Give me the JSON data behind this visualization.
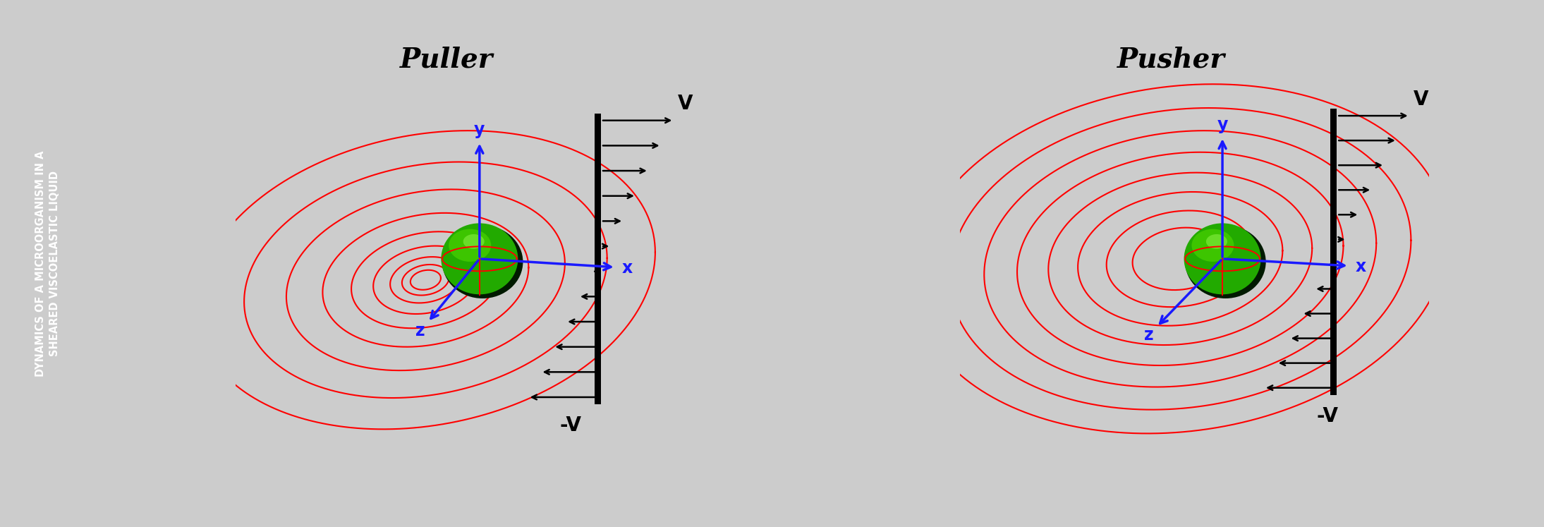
{
  "title": "DYNAMICS OF A MICROORGANISM IN A\nSHEARED VISCOELASTIC LIQUID",
  "panel1_title": "Puller",
  "panel2_title": "Pusher",
  "sidebar_color": "#3a3a3a",
  "sidebar_text_color": "#ffffff",
  "panel_bg": "#ffffff",
  "panel_border_color": "#aaaaaa",
  "outer_bg": "#cccccc",
  "spiral_color": "#ff0000",
  "axis_color": "#1a1aff",
  "shear_wall_color": "#000000",
  "V_label": "V",
  "neg_V_label": "-V",
  "x_label": "x",
  "y_label": "y",
  "z_label": "z",
  "puller_spiral_scales": [
    0.18,
    0.28,
    0.42,
    0.62,
    0.88,
    1.22,
    1.65,
    2.15,
    2.72
  ],
  "pusher_spiral_scales": [
    0.55,
    0.85,
    1.18,
    1.52,
    1.88,
    2.26,
    2.66,
    3.08
  ],
  "spiral_lw": 1.5,
  "axis_lw": 2.2,
  "wall_lw": 2.0
}
